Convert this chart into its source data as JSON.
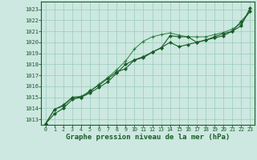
{
  "bg_color": "#cce8e0",
  "grid_color": "#99ccbb",
  "line_color_dark": "#1a5c28",
  "line_color_mid": "#2d8040",
  "xlabel": "Graphe pression niveau de la mer (hPa)",
  "xlabel_fontsize": 6.5,
  "ylabel_ticks": [
    1013,
    1014,
    1015,
    1016,
    1017,
    1018,
    1019,
    1020,
    1021,
    1022,
    1023
  ],
  "xlim": [
    -0.5,
    23.5
  ],
  "ylim": [
    1012.5,
    1023.7
  ],
  "xticks": [
    0,
    1,
    2,
    3,
    4,
    5,
    6,
    7,
    8,
    9,
    10,
    11,
    12,
    13,
    14,
    15,
    16,
    17,
    18,
    19,
    20,
    21,
    22,
    23
  ],
  "series_plus": [
    1012.6,
    1013.9,
    1014.2,
    1015.0,
    1015.1,
    1015.5,
    1016.2,
    1016.8,
    1017.5,
    1018.3,
    1019.4,
    1020.1,
    1020.5,
    1020.7,
    1020.85,
    1020.65,
    1020.5,
    1020.5,
    1020.5,
    1020.7,
    1020.9,
    1021.2,
    1021.7,
    1022.8
  ],
  "series_diamond1": [
    1012.6,
    1013.9,
    1014.3,
    1015.0,
    1015.0,
    1015.6,
    1016.1,
    1016.7,
    1017.3,
    1017.6,
    1018.4,
    1018.7,
    1019.1,
    1019.5,
    1020.6,
    1020.5,
    1020.5,
    1020.0,
    1020.2,
    1020.4,
    1020.6,
    1021.0,
    1021.9,
    1022.8
  ],
  "series_diamond2": [
    1012.6,
    1013.5,
    1014.0,
    1014.8,
    1015.0,
    1015.4,
    1015.9,
    1016.4,
    1017.2,
    1018.0,
    1018.4,
    1018.6,
    1019.1,
    1019.5,
    1020.0,
    1019.6,
    1019.8,
    1020.0,
    1020.2,
    1020.5,
    1020.8,
    1021.0,
    1021.5,
    1023.1
  ]
}
